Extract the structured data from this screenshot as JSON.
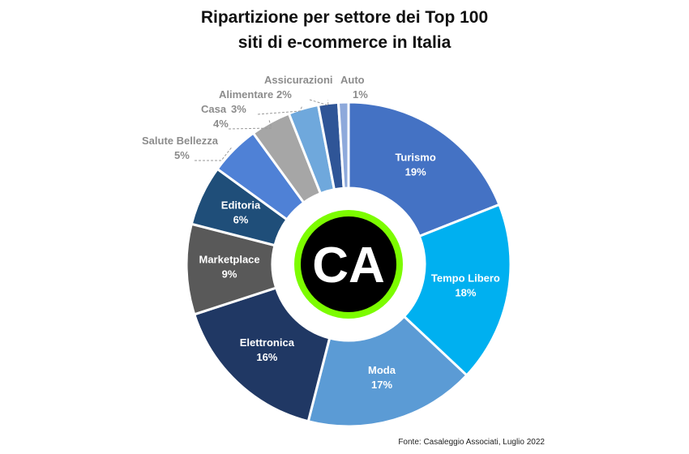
{
  "chart_data": {
    "type": "pie",
    "title_lines": [
      "Ripartizione per settore dei Top 100",
      "siti di e-commerce in Italia"
    ],
    "categories": [
      "Turismo",
      "Tempo Libero",
      "Moda",
      "Elettronica",
      "Marketplace",
      "Editoria",
      "Salute Bellezza",
      "Casa",
      "Alimentare",
      "Assicurazioni",
      "Auto"
    ],
    "values": [
      19,
      18,
      17,
      16,
      9,
      6,
      5,
      4,
      3,
      2,
      1
    ],
    "value_labels": [
      "19%",
      "18%",
      "17%",
      "16%",
      "9%",
      "6%",
      "5%",
      "4%",
      "3%",
      "2%",
      "1%"
    ],
    "unit": "%",
    "colors": [
      "#4472C4",
      "#00B0F0",
      "#5B9BD5",
      "#203864",
      "#595959",
      "#1F4E79",
      "#4F81D6",
      "#A6A6A6",
      "#6FA8DC",
      "#2F5597",
      "#8EA9DB"
    ],
    "center_logo": {
      "text": "CA",
      "ring_color": "#7CFC00",
      "fill_color": "#000000"
    },
    "source": "Fonte: Casaleggio Associati, Luglio 2022"
  }
}
